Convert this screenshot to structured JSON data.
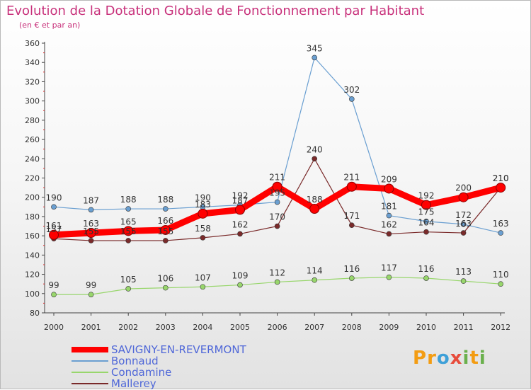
{
  "title": "Evolution de la Dotation Globale de Fonctionnement par Habitant",
  "subtitle": "(en € et par an)",
  "brand": {
    "text": "Proxiti",
    "letters": [
      {
        "ch": "P",
        "color": "#f39c12"
      },
      {
        "ch": "r",
        "color": "#f39c12"
      },
      {
        "ch": "o",
        "color": "#3ea0d8"
      },
      {
        "ch": "x",
        "color": "#e74c3c"
      },
      {
        "ch": "i",
        "color": "#6ab04c"
      },
      {
        "ch": "t",
        "color": "#f39c12"
      },
      {
        "ch": "i",
        "color": "#6ab04c"
      }
    ]
  },
  "chart_data": {
    "type": "line",
    "x": [
      "2000",
      "2001",
      "2002",
      "2003",
      "2004",
      "2005",
      "2006",
      "2007",
      "2008",
      "2009",
      "2010",
      "2011",
      "2012"
    ],
    "ylim": [
      80,
      360
    ],
    "yticks": [
      80,
      100,
      120,
      140,
      160,
      180,
      200,
      220,
      240,
      260,
      280,
      300,
      320,
      340,
      360
    ],
    "grid": false,
    "legend_position": "bottom-left",
    "series": [
      {
        "name": "Bonnaud",
        "color": "#6a9fd1",
        "values": [
          190,
          187,
          188,
          188,
          190,
          192,
          195,
          345,
          302,
          181,
          175,
          172,
          163
        ],
        "labels": [
          "190",
          "187",
          "188",
          "188",
          "190",
          "192",
          "195",
          "345",
          "302",
          "181",
          "175",
          "172",
          "163"
        ]
      },
      {
        "name": "Condamine",
        "color": "#98d66c",
        "values": [
          99,
          99,
          105,
          106,
          107,
          109,
          112,
          114,
          116,
          117,
          116,
          113,
          110
        ],
        "labels": [
          "99",
          "99",
          "105",
          "106",
          "107",
          "109",
          "112",
          "114",
          "116",
          "117",
          "116",
          "113",
          "110"
        ]
      },
      {
        "name": "Mallerey",
        "color": "#7a2a2a",
        "values": [
          157,
          155,
          155,
          155,
          158,
          162,
          170,
          240,
          171,
          162,
          164,
          163,
          210
        ],
        "labels": [
          "157",
          "155",
          "155",
          "155",
          "158",
          "162",
          "170",
          "240",
          "171",
          "162",
          "164",
          "163",
          "210"
        ]
      },
      {
        "name": "SAVIGNY-EN-REVERMONT",
        "color": "#ff0000",
        "values": [
          161,
          163,
          165,
          166,
          183,
          187,
          211,
          188,
          211,
          209,
          192,
          200,
          210
        ],
        "labels": [
          "161",
          "163",
          "165",
          "166",
          "183",
          "187",
          "211",
          "188",
          "211",
          "209",
          "192",
          "200",
          "210"
        ]
      }
    ],
    "legend_order": [
      "SAVIGNY-EN-REVERMONT",
      "Bonnaud",
      "Condamine",
      "Mallerey"
    ]
  }
}
